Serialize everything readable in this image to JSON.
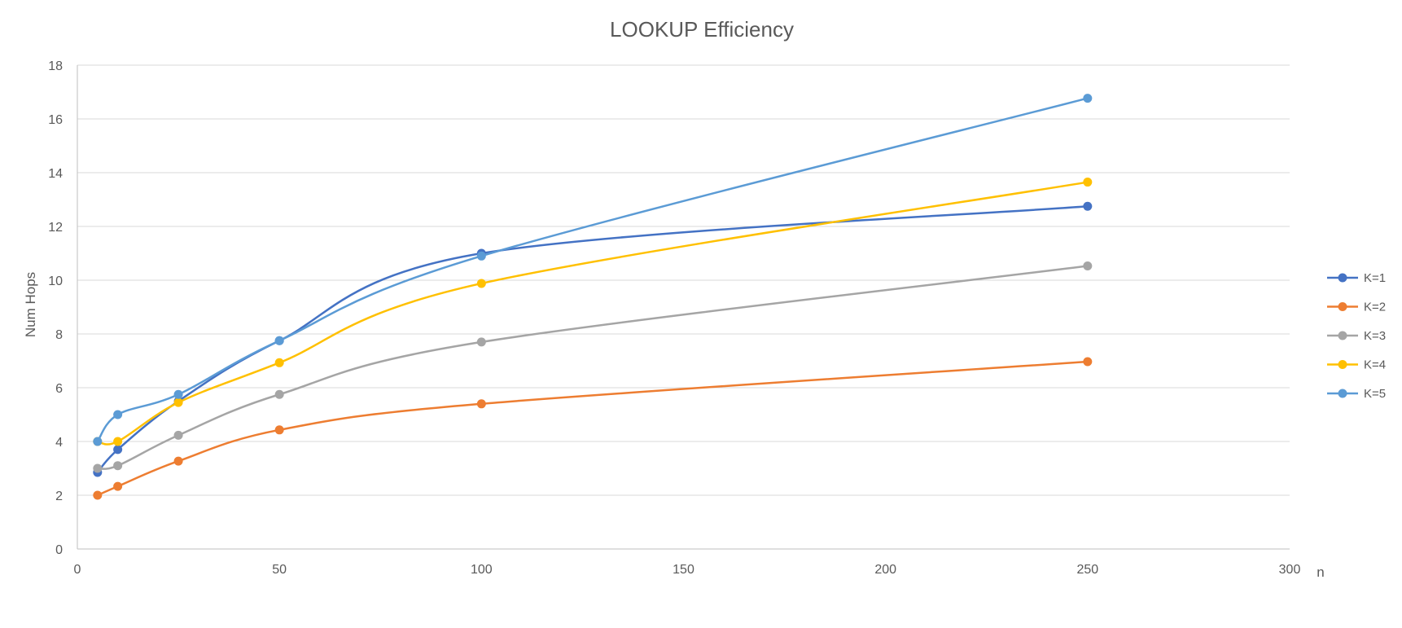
{
  "chart_data": {
    "type": "line",
    "title": "LOOKUP Efficiency",
    "xlabel": "n",
    "ylabel": "Num Hops",
    "xlim": [
      0,
      300
    ],
    "ylim": [
      0,
      18
    ],
    "x_ticks": [
      0,
      50,
      100,
      150,
      200,
      250,
      300
    ],
    "y_ticks": [
      0,
      2,
      4,
      6,
      8,
      10,
      12,
      14,
      16,
      18
    ],
    "grid": "horizontal",
    "smoothed": true,
    "legend_position": "right",
    "x": [
      5,
      10,
      25,
      50,
      100,
      250
    ],
    "series": [
      {
        "name": "K=1",
        "color": "#4472C4",
        "values": [
          2.85,
          3.7,
          5.5,
          7.75,
          11.0,
          12.75
        ]
      },
      {
        "name": "K=2",
        "color": "#ED7D31",
        "values": [
          2.0,
          2.33,
          3.27,
          4.43,
          5.4,
          6.97
        ]
      },
      {
        "name": "K=3",
        "color": "#A5A5A5",
        "values": [
          3.0,
          3.1,
          4.23,
          5.75,
          7.7,
          10.53
        ]
      },
      {
        "name": "K=4",
        "color": "#FFC000",
        "values": [
          4.0,
          4.0,
          5.45,
          6.93,
          9.88,
          13.65
        ]
      },
      {
        "name": "K=5",
        "color": "#5B9BD5",
        "values": [
          4.0,
          5.0,
          5.75,
          7.75,
          10.9,
          16.77
        ]
      }
    ]
  }
}
